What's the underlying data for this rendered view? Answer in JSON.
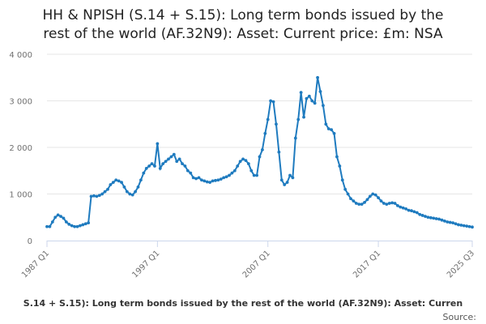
{
  "chart_data": {
    "type": "line",
    "title_lines": [
      "HH & NPISH (S.14 + S.15): Long term bonds issued by the",
      "rest of the world (AF.32N9): Asset: Current price: £m: NSA"
    ],
    "legend_text": "S.14 + S.15): Long term bonds issued by the rest of the world (AF.32N9): Asset: Curren",
    "source_label": "Source:",
    "ylim": [
      0,
      4000
    ],
    "y_ticks": [
      {
        "value": 0,
        "label": "0"
      },
      {
        "value": 1000,
        "label": "1 000"
      },
      {
        "value": 2000,
        "label": "2 000"
      },
      {
        "value": 3000,
        "label": "3 000"
      },
      {
        "value": 4000,
        "label": "4 000"
      }
    ],
    "x_ticks": [
      {
        "index": 0,
        "label": "1987 Q1"
      },
      {
        "index": 40,
        "label": "1997 Q1"
      },
      {
        "index": 80,
        "label": "2007 Q1"
      },
      {
        "index": 120,
        "label": "2017 Q1"
      },
      {
        "index": 154,
        "label": "2025 Q3"
      }
    ],
    "colors": {
      "series": "#1f7bbf",
      "grid": "#e6e6e6",
      "axis": "#ccd6eb"
    },
    "series": [
      {
        "values": [
          300,
          300,
          400,
          500,
          550,
          520,
          480,
          400,
          350,
          320,
          300,
          300,
          320,
          340,
          360,
          380,
          950,
          960,
          950,
          970,
          1000,
          1050,
          1100,
          1200,
          1250,
          1300,
          1280,
          1250,
          1150,
          1050,
          1000,
          980,
          1050,
          1150,
          1300,
          1450,
          1550,
          1600,
          1650,
          1600,
          2080,
          1550,
          1650,
          1700,
          1750,
          1800,
          1850,
          1700,
          1750,
          1650,
          1600,
          1500,
          1450,
          1350,
          1330,
          1350,
          1300,
          1280,
          1260,
          1250,
          1280,
          1290,
          1300,
          1320,
          1350,
          1370,
          1400,
          1450,
          1500,
          1600,
          1700,
          1750,
          1720,
          1650,
          1500,
          1400,
          1400,
          1800,
          1950,
          2300,
          2600,
          3000,
          2980,
          2500,
          1900,
          1300,
          1200,
          1250,
          1400,
          1350,
          2200,
          2600,
          3180,
          2650,
          3050,
          3100,
          3000,
          2950,
          3500,
          3200,
          2900,
          2500,
          2400,
          2380,
          2300,
          1800,
          1600,
          1300,
          1100,
          1000,
          900,
          850,
          800,
          780,
          780,
          820,
          880,
          950,
          1000,
          980,
          920,
          850,
          800,
          780,
          800,
          810,
          800,
          750,
          720,
          700,
          680,
          650,
          640,
          620,
          600,
          560,
          540,
          520,
          500,
          490,
          480,
          470,
          460,
          440,
          420,
          400,
          390,
          380,
          360,
          340,
          330,
          320,
          310,
          300,
          290
        ]
      }
    ]
  }
}
